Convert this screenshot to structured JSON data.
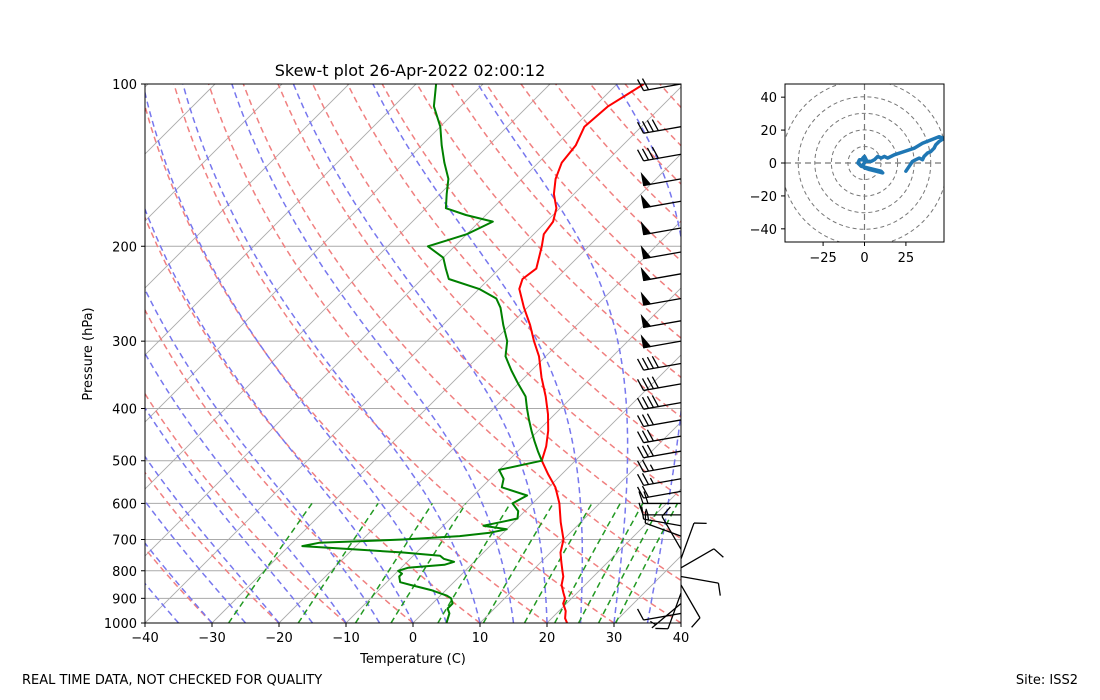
{
  "footer": {
    "note": "REAL TIME DATA, NOT CHECKED FOR QUALITY",
    "site": "Site: ISS2"
  },
  "chart_data": [
    {
      "type": "line",
      "title": "Skew-t plot 26-Apr-2022 02:00:12",
      "xlabel": "Temperature (C)",
      "ylabel": "Pressure (hPa)",
      "xlim": [
        -40,
        40
      ],
      "ylim": [
        1000,
        100
      ],
      "y_scale": "log",
      "skew_degrees": 45,
      "grid": true,
      "x_ticks": [
        -40,
        -30,
        -20,
        -10,
        0,
        10,
        20,
        30,
        40
      ],
      "y_ticks": [
        100,
        200,
        300,
        400,
        500,
        600,
        700,
        800,
        900,
        1000
      ],
      "colors": {
        "temperature": "#ff0000",
        "dewpoint": "#008000",
        "dry_adiabat": "#f08080",
        "moist_adiabat": "#7777ee",
        "mixing_ratio": "#229922",
        "isotherm": "#aaaaaa",
        "barb": "#000000"
      },
      "series": [
        {
          "key": "temperature",
          "points": [
            [
              1000,
              23
            ],
            [
              980,
              22
            ],
            [
              950,
              21
            ],
            [
              920,
              19.5
            ],
            [
              900,
              19
            ],
            [
              880,
              18
            ],
            [
              850,
              16.5
            ],
            [
              820,
              15.5
            ],
            [
              800,
              14.5
            ],
            [
              770,
              13
            ],
            [
              740,
              11.5
            ],
            [
              700,
              10
            ],
            [
              650,
              7
            ],
            [
              600,
              4
            ],
            [
              560,
              1
            ],
            [
              530,
              -2
            ],
            [
              500,
              -5
            ],
            [
              470,
              -6.5
            ],
            [
              440,
              -8.5
            ],
            [
              410,
              -11
            ],
            [
              380,
              -14
            ],
            [
              350,
              -17.5
            ],
            [
              320,
              -21
            ],
            [
              300,
              -24
            ],
            [
              280,
              -27
            ],
            [
              260,
              -30.5
            ],
            [
              240,
              -34
            ],
            [
              230,
              -35
            ],
            [
              220,
              -34.5
            ],
            [
              200,
              -37
            ],
            [
              190,
              -38.5
            ],
            [
              180,
              -39
            ],
            [
              170,
              -40.5
            ],
            [
              160,
              -43
            ],
            [
              150,
              -45
            ],
            [
              140,
              -46.5
            ],
            [
              130,
              -47
            ],
            [
              120,
              -48.5
            ],
            [
              110,
              -48
            ],
            [
              105,
              -47
            ],
            [
              100,
              -46
            ]
          ]
        },
        {
          "key": "dewpoint",
          "points": [
            [
              1000,
              5
            ],
            [
              980,
              4.5
            ],
            [
              960,
              4
            ],
            [
              940,
              3
            ],
            [
              920,
              3
            ],
            [
              900,
              2
            ],
            [
              890,
              1
            ],
            [
              870,
              -2
            ],
            [
              850,
              -6
            ],
            [
              840,
              -8
            ],
            [
              820,
              -9
            ],
            [
              810,
              -9
            ],
            [
              800,
              -10
            ],
            [
              790,
              -9
            ],
            [
              780,
              -4
            ],
            [
              770,
              -3
            ],
            [
              760,
              -5
            ],
            [
              750,
              -6
            ],
            [
              740,
              -12
            ],
            [
              730,
              -20
            ],
            [
              720,
              -28
            ],
            [
              710,
              -26
            ],
            [
              700,
              -14
            ],
            [
              690,
              -6
            ],
            [
              680,
              -2
            ],
            [
              670,
              0
            ],
            [
              660,
              -4
            ],
            [
              650,
              -2
            ],
            [
              640,
              0
            ],
            [
              620,
              -1
            ],
            [
              600,
              -3
            ],
            [
              580,
              -2
            ],
            [
              560,
              -7
            ],
            [
              540,
              -8
            ],
            [
              520,
              -10
            ],
            [
              500,
              -5
            ],
            [
              480,
              -7
            ],
            [
              460,
              -9
            ],
            [
              440,
              -11
            ],
            [
              420,
              -13
            ],
            [
              400,
              -15
            ],
            [
              380,
              -17
            ],
            [
              360,
              -20
            ],
            [
              340,
              -23
            ],
            [
              320,
              -26
            ],
            [
              300,
              -28
            ],
            [
              280,
              -31
            ],
            [
              260,
              -34
            ],
            [
              250,
              -36
            ],
            [
              240,
              -40
            ],
            [
              230,
              -46
            ],
            [
              220,
              -48
            ],
            [
              210,
              -50
            ],
            [
              200,
              -54
            ],
            [
              195,
              -52
            ],
            [
              190,
              -50
            ],
            [
              185,
              -49
            ],
            [
              180,
              -48
            ],
            [
              175,
              -53
            ],
            [
              170,
              -57
            ],
            [
              160,
              -59
            ],
            [
              150,
              -61
            ],
            [
              140,
              -64
            ],
            [
              130,
              -67
            ],
            [
              120,
              -70
            ],
            [
              110,
              -74
            ],
            [
              100,
              -77
            ]
          ]
        }
      ],
      "wind_barbs": [
        {
          "p": 100,
          "speed": 20,
          "dir": 260
        },
        {
          "p": 120,
          "speed": 40,
          "dir": 260
        },
        {
          "p": 135,
          "speed": 40,
          "dir": 260
        },
        {
          "p": 150,
          "speed": 50,
          "dir": 260
        },
        {
          "p": 165,
          "speed": 50,
          "dir": 260
        },
        {
          "p": 185,
          "speed": 50,
          "dir": 260
        },
        {
          "p": 205,
          "speed": 50,
          "dir": 260
        },
        {
          "p": 225,
          "speed": 50,
          "dir": 260
        },
        {
          "p": 250,
          "speed": 50,
          "dir": 260
        },
        {
          "p": 275,
          "speed": 50,
          "dir": 260
        },
        {
          "p": 300,
          "speed": 50,
          "dir": 260
        },
        {
          "p": 330,
          "speed": 40,
          "dir": 260
        },
        {
          "p": 360,
          "speed": 40,
          "dir": 260
        },
        {
          "p": 390,
          "speed": 40,
          "dir": 260
        },
        {
          "p": 420,
          "speed": 30,
          "dir": 260
        },
        {
          "p": 450,
          "speed": 30,
          "dir": 260
        },
        {
          "p": 480,
          "speed": 30,
          "dir": 260
        },
        {
          "p": 510,
          "speed": 25,
          "dir": 260
        },
        {
          "p": 540,
          "speed": 25,
          "dir": 260
        },
        {
          "p": 570,
          "speed": 20,
          "dir": 260
        },
        {
          "p": 600,
          "speed": 20,
          "dir": 270
        },
        {
          "p": 630,
          "speed": 15,
          "dir": 270
        },
        {
          "p": 660,
          "speed": 15,
          "dir": 280
        },
        {
          "p": 690,
          "speed": 10,
          "dir": 290
        },
        {
          "p": 730,
          "speed": 10,
          "dir": 330
        },
        {
          "p": 760,
          "speed": 10,
          "dir": 20
        },
        {
          "p": 790,
          "speed": 10,
          "dir": 60
        },
        {
          "p": 820,
          "speed": 10,
          "dir": 100
        },
        {
          "p": 850,
          "speed": 10,
          "dir": 150
        },
        {
          "p": 880,
          "speed": 10,
          "dir": 200
        },
        {
          "p": 920,
          "speed": 5,
          "dir": 230
        },
        {
          "p": 960,
          "speed": 10,
          "dir": 260
        }
      ]
    },
    {
      "type": "line",
      "title": "",
      "xlim": [
        -48,
        48
      ],
      "ylim": [
        -48,
        48
      ],
      "x_ticks": [
        -25,
        0,
        25
      ],
      "y_ticks": [
        -40,
        -20,
        0,
        20,
        40
      ],
      "rings": [
        10,
        20,
        30,
        40,
        50
      ],
      "series": [
        {
          "key": "hodograph",
          "color": "#1f77b4",
          "points": [
            [
              25,
              -5
            ],
            [
              27,
              -2
            ],
            [
              29,
              1
            ],
            [
              31,
              2
            ],
            [
              33,
              3
            ],
            [
              35,
              2
            ],
            [
              36,
              4
            ],
            [
              38,
              6
            ],
            [
              40,
              7
            ],
            [
              42,
              9
            ],
            [
              43,
              11
            ],
            [
              45,
              13
            ],
            [
              48,
              15
            ],
            [
              45,
              16
            ],
            [
              40,
              14
            ],
            [
              35,
              12
            ],
            [
              30,
              9
            ],
            [
              24,
              7
            ],
            [
              18,
              5
            ],
            [
              14,
              3
            ],
            [
              12,
              4
            ],
            [
              10,
              3
            ],
            [
              8,
              4
            ],
            [
              6,
              2
            ],
            [
              4,
              1
            ],
            [
              2,
              1
            ],
            [
              0,
              2
            ],
            [
              -3,
              2
            ],
            [
              -4,
              0
            ],
            [
              -2,
              -2
            ],
            [
              2,
              -3
            ],
            [
              6,
              -4
            ],
            [
              10,
              -5
            ],
            [
              11,
              -6
            ],
            [
              7,
              -5
            ],
            [
              3,
              -4
            ],
            [
              0,
              -3
            ],
            [
              -1,
              -1
            ],
            [
              0,
              0
            ],
            [
              1,
              2
            ],
            [
              0,
              4
            ],
            [
              -1,
              3
            ],
            [
              0,
              1
            ]
          ]
        }
      ]
    }
  ]
}
